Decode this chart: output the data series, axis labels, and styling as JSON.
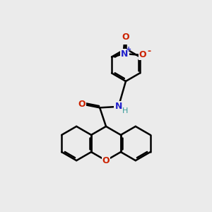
{
  "bg_color": "#ebebeb",
  "bond_color": "#000000",
  "bond_width": 1.8,
  "figsize": [
    3.0,
    3.0
  ],
  "dpi": 100,
  "colors": {
    "Cl": "#00aa00",
    "N": "#2222cc",
    "O": "#cc2200",
    "H": "#339999",
    "C": "#000000"
  }
}
